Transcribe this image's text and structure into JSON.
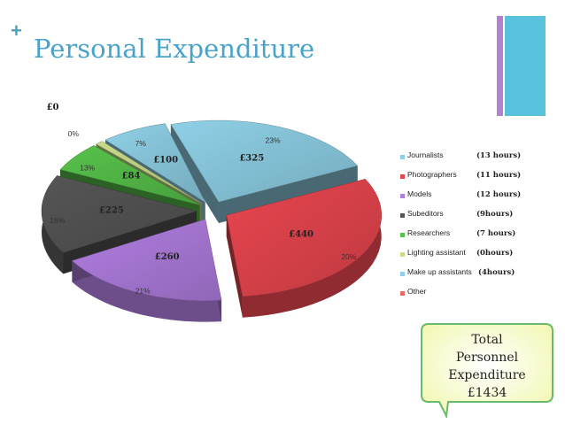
{
  "header": {
    "plus": "+",
    "title": "Personal Expenditure"
  },
  "chart_data": {
    "type": "pie",
    "categories": [
      "Journalists",
      "Photographers",
      "Models",
      "Subeditors",
      "Researchers",
      "Lighting assistant",
      "Make up assistants",
      "Other"
    ],
    "values": [
      325,
      440,
      260,
      225,
      84,
      0,
      100,
      0
    ],
    "value_labels": [
      "£325",
      "£440",
      "£260",
      "£225",
      "£84",
      "£0",
      "£100",
      ""
    ],
    "percent_labels": [
      "23%",
      "20%",
      "21%",
      "16%",
      "13%",
      "0%",
      "7%",
      ""
    ],
    "hours": [
      "(13 hours)",
      "(11 hours)",
      "(12 hours)",
      "(9hours)",
      "(7 hours)",
      "(0hours)",
      "(4hours)",
      ""
    ],
    "colors": [
      "#8fd0e6",
      "#e8464f",
      "#b07ee0",
      "#555555",
      "#57c24a",
      "#c8dc8a",
      "#8fd0e6",
      "#e86a6a"
    ],
    "legend_position": "right"
  },
  "callout": {
    "lines": [
      "Total",
      "Personnel",
      "Expenditure",
      "£1434"
    ]
  }
}
